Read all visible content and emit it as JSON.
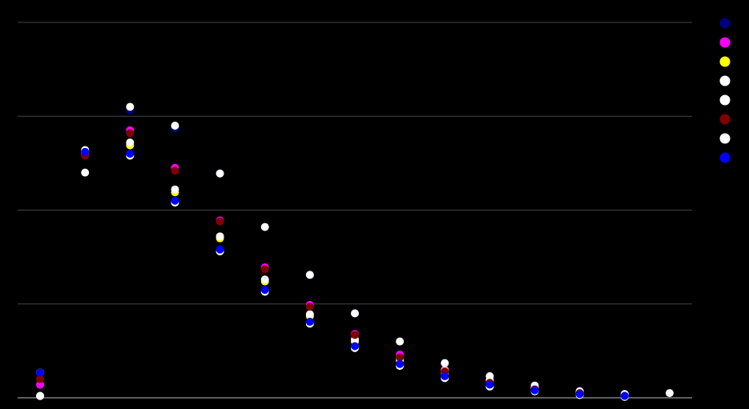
{
  "chart_data": {
    "type": "scatter",
    "title": "",
    "xlabel": "",
    "ylabel": "",
    "x": [
      1,
      2,
      3,
      4,
      5,
      6,
      7,
      8,
      9,
      10,
      11,
      12,
      13,
      14,
      15
    ],
    "xlim": [
      0.5,
      15.5
    ],
    "ylim": [
      0,
      4
    ],
    "grid": "horizontal",
    "gridlines": [
      0,
      1,
      2,
      3,
      4
    ],
    "legend_placement": "right",
    "background": "#000000",
    "series": [
      {
        "color": "#000080",
        "values": [
          0.27,
          2.64,
          3.06,
          2.87,
          2.39,
          1.82,
          1.31,
          0.9,
          0.6,
          0.37,
          0.23,
          0.13,
          0.07,
          0.04,
          null
        ]
      },
      {
        "color": "#ff00ff",
        "values": [
          0.14,
          2.6,
          2.85,
          2.45,
          1.89,
          1.39,
          0.99,
          0.68,
          0.46,
          0.3,
          0.18,
          0.1,
          0.06,
          0.02,
          null
        ]
      },
      {
        "color": "#ffff00",
        "values": [
          0.02,
          2.62,
          2.69,
          2.19,
          1.7,
          1.24,
          0.87,
          0.6,
          0.4,
          0.27,
          0.17,
          0.1,
          0.05,
          0.02,
          null
        ]
      },
      {
        "color": "#ffffff",
        "values": [
          0.27,
          2.64,
          3.1,
          2.9,
          2.39,
          1.82,
          1.31,
          0.9,
          0.6,
          0.37,
          0.23,
          0.13,
          0.07,
          0.04,
          0.05
        ]
      },
      {
        "color": "#ffffff",
        "values": [
          0.02,
          2.62,
          2.72,
          2.22,
          1.72,
          1.26,
          0.89,
          0.62,
          0.42,
          0.29,
          0.19,
          0.11,
          0.06,
          0.03,
          null
        ]
      },
      {
        "color": "#800000",
        "values": [
          0.2,
          2.58,
          2.82,
          2.42,
          1.88,
          1.37,
          0.97,
          0.67,
          0.43,
          0.28,
          0.16,
          0.09,
          0.05,
          0.02,
          null
        ]
      },
      {
        "color": "#ffffff",
        "values": [
          0.02,
          2.4,
          2.58,
          2.08,
          1.56,
          1.13,
          0.79,
          0.53,
          0.34,
          0.21,
          0.12,
          0.07,
          0.03,
          0.01,
          null
        ]
      },
      {
        "color": "#0000ff",
        "values": [
          0.27,
          2.62,
          2.6,
          2.1,
          1.58,
          1.15,
          0.81,
          0.55,
          0.36,
          0.23,
          0.14,
          0.08,
          0.04,
          0.02,
          null
        ]
      }
    ]
  }
}
